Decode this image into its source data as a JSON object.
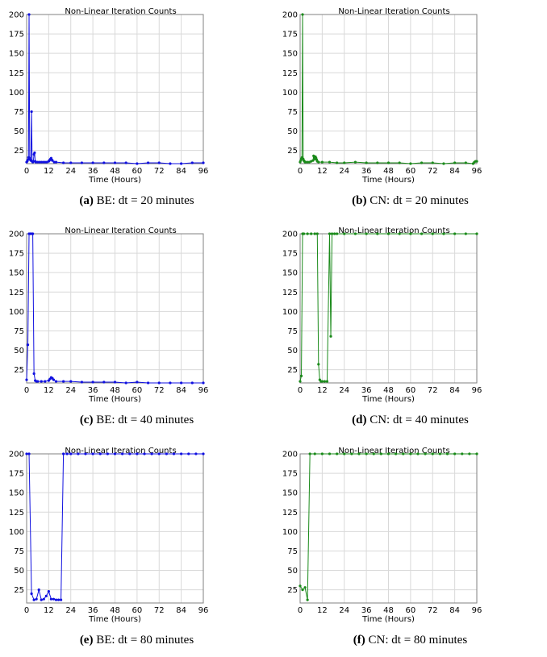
{
  "chart_data": [
    {
      "id": "a",
      "type": "line",
      "title": "Non-Linear Iteration Counts",
      "xlabel": "Time (Hours)",
      "ylabel": "",
      "xlim": [
        0,
        96
      ],
      "ylim": [
        8,
        200
      ],
      "xticks": [
        0,
        12,
        24,
        36,
        48,
        60,
        72,
        84,
        96
      ],
      "yticks": [
        25,
        50,
        75,
        100,
        125,
        150,
        175,
        200
      ],
      "grid": true,
      "color": "#1010e0",
      "caption_label": "(a)",
      "caption_text": "BE: dt = 20 minutes",
      "series": [
        {
          "x": [
            0,
            0.33,
            0.67,
            1.0,
            1.33,
            1.67,
            2.0,
            2.33,
            2.67,
            3.0,
            3.33,
            3.67,
            4.0,
            4.33,
            4.67,
            5,
            6,
            7,
            8,
            9,
            10,
            11,
            12,
            12.33,
            12.67,
            13,
            13.33,
            13.67,
            14,
            15,
            16,
            20,
            24,
            30,
            36,
            42,
            48,
            54,
            60,
            66,
            72,
            78,
            84,
            90,
            96
          ],
          "y": [
            10,
            11,
            13,
            16,
            200,
            15,
            13,
            12,
            75,
            11,
            10,
            11,
            20,
            22,
            11,
            10,
            10,
            10,
            10,
            10,
            10,
            10,
            11,
            12,
            13,
            14,
            15,
            13,
            12,
            10,
            10,
            9,
            9,
            9,
            9,
            9,
            9,
            9,
            8,
            9,
            9,
            8,
            8,
            9,
            9
          ]
        }
      ]
    },
    {
      "id": "b",
      "type": "line",
      "title": "Non-Linear Iteration Counts",
      "xlabel": "Time (Hours)",
      "ylabel": "",
      "xlim": [
        0,
        96
      ],
      "ylim": [
        8,
        200
      ],
      "xticks": [
        0,
        12,
        24,
        36,
        48,
        60,
        72,
        84,
        96
      ],
      "yticks": [
        25,
        50,
        75,
        100,
        125,
        150,
        175,
        200
      ],
      "grid": true,
      "color": "#1a8a1a",
      "caption_label": "(b)",
      "caption_text": "CN: dt = 20 minutes",
      "series": [
        {
          "x": [
            0,
            0.33,
            0.67,
            1.0,
            1.33,
            1.67,
            2.0,
            2.33,
            2.67,
            3,
            4,
            5,
            6,
            7,
            7.33,
            7.67,
            8,
            8.33,
            8.67,
            9,
            9.33,
            10,
            12,
            16,
            20,
            24,
            30,
            36,
            42,
            48,
            54,
            60,
            66,
            72,
            78,
            84,
            90,
            94,
            94.67,
            95.33,
            96
          ],
          "y": [
            10,
            12,
            14,
            16,
            200,
            14,
            12,
            11,
            10,
            10,
            10,
            10,
            11,
            12,
            18,
            16,
            14,
            17,
            15,
            13,
            11,
            10,
            10,
            10,
            9,
            9,
            10,
            9,
            9,
            9,
            9,
            8,
            9,
            9,
            8,
            9,
            9,
            8,
            10,
            11,
            11
          ]
        }
      ]
    },
    {
      "id": "c",
      "type": "line",
      "title": "Non-Linear Iteration Counts",
      "xlabel": "Time (Hours)",
      "ylabel": "",
      "xlim": [
        0,
        96
      ],
      "ylim": [
        8,
        200
      ],
      "xticks": [
        0,
        12,
        24,
        36,
        48,
        60,
        72,
        84,
        96
      ],
      "yticks": [
        25,
        50,
        75,
        100,
        125,
        150,
        175,
        200
      ],
      "grid": true,
      "color": "#1010e0",
      "caption_label": "(c)",
      "caption_text": "BE: dt = 40 minutes",
      "series": [
        {
          "x": [
            0,
            0.67,
            1.33,
            2.0,
            2.67,
            3.33,
            4.0,
            4.67,
            5.33,
            6,
            8,
            10,
            12,
            12.67,
            13.33,
            14,
            14.67,
            16,
            20,
            24,
            30,
            36,
            42,
            48,
            54,
            60,
            66,
            72,
            78,
            84,
            90,
            96
          ],
          "y": [
            12,
            57,
            200,
            200,
            200,
            200,
            20,
            11,
            10,
            10,
            10,
            10,
            11,
            13,
            15,
            14,
            12,
            10,
            10,
            10,
            9,
            9,
            9,
            9,
            8,
            9,
            8,
            8,
            8,
            8,
            8,
            8
          ]
        }
      ]
    },
    {
      "id": "d",
      "type": "line",
      "title": "Non-Linear Iteration Counts",
      "xlabel": "Time (Hours)",
      "ylabel": "",
      "xlim": [
        0,
        96
      ],
      "ylim": [
        8,
        200
      ],
      "xticks": [
        0,
        12,
        24,
        36,
        48,
        60,
        72,
        84,
        96
      ],
      "yticks": [
        25,
        50,
        75,
        100,
        125,
        150,
        175,
        200
      ],
      "grid": true,
      "color": "#1a8a1a",
      "caption_label": "(d)",
      "caption_text": "CN: dt = 40 minutes",
      "series": [
        {
          "x": [
            0,
            0.67,
            1.33,
            2.0,
            4,
            6,
            8,
            9.33,
            10.0,
            10.67,
            11.33,
            12,
            13.33,
            14.67,
            16.0,
            16.67,
            17.33,
            18.67,
            20,
            24,
            30,
            36,
            42,
            48,
            54,
            60,
            66,
            72,
            78,
            84,
            90,
            96
          ],
          "y": [
            10,
            17,
            200,
            200,
            200,
            200,
            200,
            200,
            32,
            12,
            10,
            10,
            10,
            10,
            200,
            68,
            200,
            200,
            200,
            200,
            200,
            200,
            200,
            200,
            200,
            200,
            200,
            200,
            200,
            200,
            200,
            200
          ]
        }
      ]
    },
    {
      "id": "e",
      "type": "line",
      "title": "Non-Linear Iteration Counts",
      "xlabel": "Time (Hours)",
      "ylabel": "",
      "xlim": [
        0,
        96
      ],
      "ylim": [
        8,
        200
      ],
      "xticks": [
        0,
        12,
        24,
        36,
        48,
        60,
        72,
        84,
        96
      ],
      "yticks": [
        25,
        50,
        75,
        100,
        125,
        150,
        175,
        200
      ],
      "grid": true,
      "color": "#1010e0",
      "caption_label": "(e)",
      "caption_text": "BE: dt = 80 minutes",
      "series": [
        {
          "x": [
            0,
            1.33,
            2.67,
            4.0,
            5.33,
            6.67,
            8.0,
            9.33,
            10.67,
            12.0,
            13.33,
            14.67,
            16.0,
            17.33,
            18.67,
            20,
            22,
            24,
            28,
            32,
            36,
            40,
            44,
            48,
            52,
            56,
            60,
            64,
            68,
            72,
            76,
            80,
            84,
            88,
            92,
            96
          ],
          "y": [
            200,
            200,
            20,
            12,
            13,
            25,
            12,
            13,
            17,
            23,
            13,
            13,
            12,
            12,
            12,
            200,
            200,
            200,
            200,
            200,
            200,
            200,
            200,
            200,
            200,
            200,
            200,
            200,
            200,
            200,
            200,
            200,
            200,
            200,
            200,
            200
          ]
        }
      ]
    },
    {
      "id": "f",
      "type": "line",
      "title": "Non-Linear Iteration Counts",
      "xlabel": "Time (Hours)",
      "ylabel": "",
      "xlim": [
        0,
        96
      ],
      "ylim": [
        8,
        200
      ],
      "xticks": [
        0,
        12,
        24,
        36,
        48,
        60,
        72,
        84,
        96
      ],
      "yticks": [
        25,
        50,
        75,
        100,
        125,
        150,
        175,
        200
      ],
      "grid": true,
      "color": "#1a8a1a",
      "caption_label": "(f)",
      "caption_text": "CN: dt = 80 minutes",
      "series": [
        {
          "x": [
            0,
            1.33,
            2.67,
            4.0,
            5.33,
            8,
            12,
            16,
            20,
            24,
            28,
            32,
            36,
            40,
            44,
            48,
            52,
            56,
            60,
            64,
            68,
            72,
            76,
            80,
            84,
            88,
            92,
            96
          ],
          "y": [
            30,
            25,
            28,
            12,
            200,
            200,
            200,
            200,
            200,
            200,
            200,
            200,
            200,
            200,
            200,
            200,
            200,
            200,
            200,
            200,
            200,
            200,
            200,
            200,
            200,
            200,
            200,
            200
          ]
        }
      ]
    }
  ]
}
